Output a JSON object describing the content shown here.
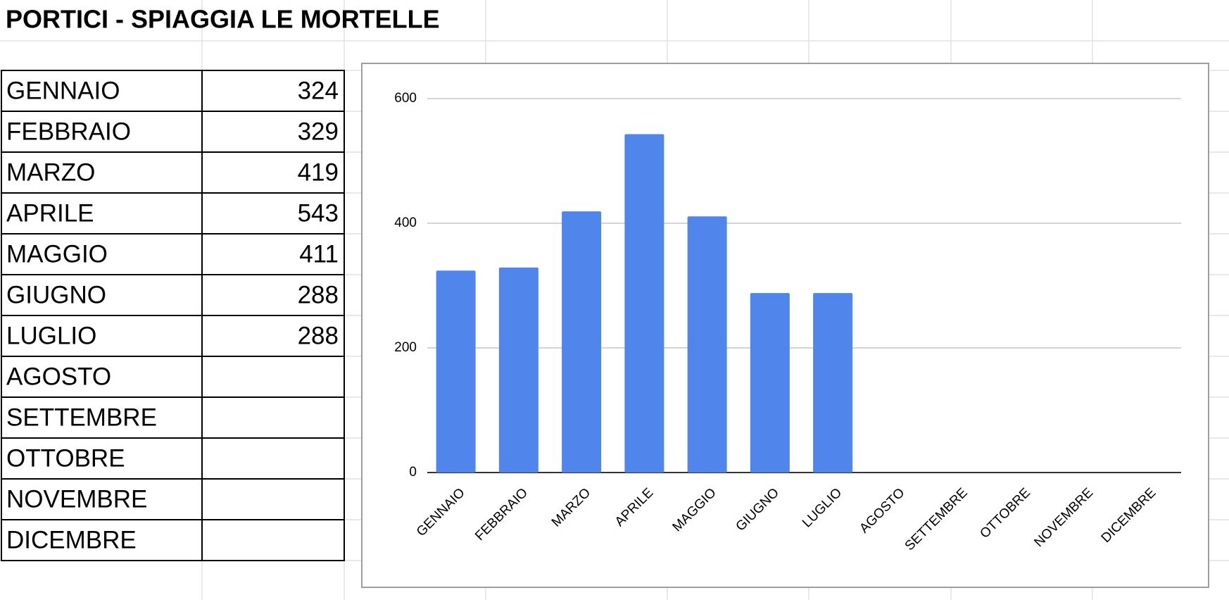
{
  "chart_data": {
    "type": "bar",
    "title": "PORTICI - SPIAGGIA LE MORTELLE",
    "categories": [
      "GENNAIO",
      "FEBBRAIO",
      "MARZO",
      "APRILE",
      "MAGGIO",
      "GIUGNO",
      "LUGLIO",
      "AGOSTO",
      "SETTEMBRE",
      "OTTOBRE",
      "NOVEMBRE",
      "DICEMBRE"
    ],
    "values": [
      324,
      329,
      419,
      543,
      411,
      288,
      288,
      null,
      null,
      null,
      null,
      null
    ],
    "color": "#5086ec",
    "ylim": [
      0,
      600
    ],
    "yticks": [
      0,
      200,
      400,
      600
    ],
    "grid": true
  }
}
